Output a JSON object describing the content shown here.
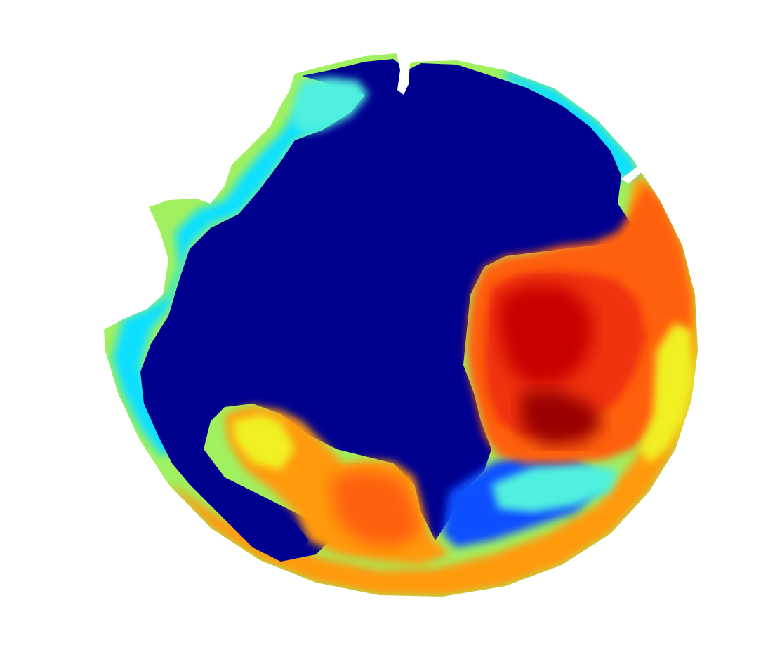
{
  "map": {
    "projection": "polar-stereographic",
    "colormap": "jet",
    "colors": {
      "background": "#ffffff",
      "ocean_low": "#00008f",
      "deep_blue": "#0000d0",
      "blue": "#1050ff",
      "cyan": "#10e0ff",
      "light_cyan": "#50f0e0",
      "green_yellow": "#a0f060",
      "yellow": "#f0f020",
      "orange": "#ff9a10",
      "orange_red": "#ff6010",
      "red": "#f03010",
      "dark_red": "#c80000",
      "deepest_red": "#9a0000"
    }
  }
}
